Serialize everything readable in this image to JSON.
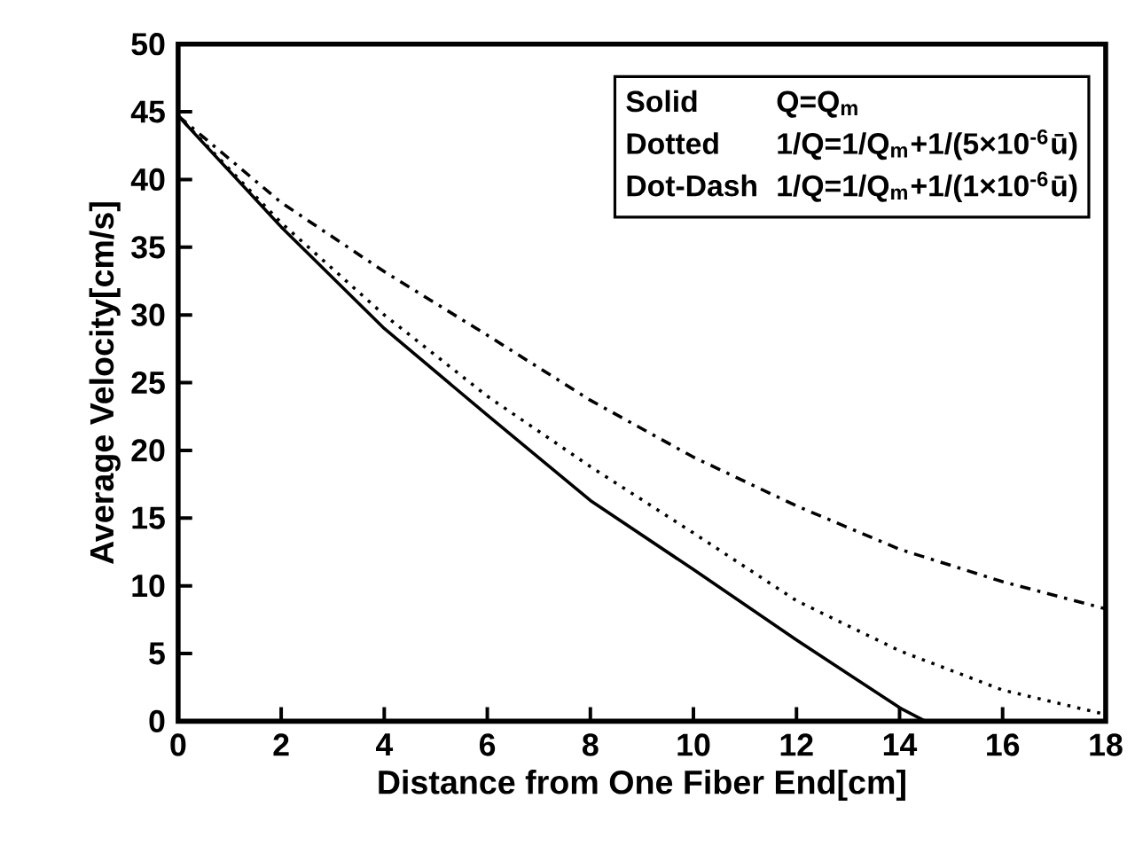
{
  "chart_data": {
    "type": "line",
    "xlabel": "Distance from One Fiber End[cm]",
    "ylabel": "Average Velocity[cm/s]",
    "xlim": [
      0,
      18
    ],
    "ylim": [
      0,
      50
    ],
    "xticks": [
      0,
      2,
      4,
      6,
      8,
      10,
      12,
      14,
      16,
      18
    ],
    "yticks": [
      0,
      5,
      10,
      15,
      20,
      25,
      30,
      35,
      40,
      45,
      50
    ],
    "grid": false,
    "annotations": [
      "Solid",
      "Q=Q$_{m}$",
      "Dotted",
      "1/Q=1/Q$_{m}$+1/(5×10$^{-6}$ū)",
      "Dot-Dash",
      "1/Q=1/Q$_{m}$+1/(1×10$^{-6}$ū)"
    ],
    "series": [
      {
        "color": "#000000",
        "line_style": "solid",
        "x": [
          0,
          2,
          4,
          6,
          8,
          10,
          12,
          14,
          14.5,
          14.8
        ],
        "values": [
          44.7,
          36.5,
          29,
          22.6,
          16.3,
          11.2,
          6.0,
          1.0,
          0,
          0
        ]
      },
      {
        "color": "#000000",
        "line_style": "dotted",
        "x": [
          0,
          2,
          4,
          6,
          8,
          10,
          12,
          14,
          16,
          18
        ],
        "values": [
          44.7,
          36.8,
          30,
          24,
          18.8,
          13.9,
          8.9,
          5.2,
          2.3,
          0.5
        ]
      },
      {
        "color": "#000000",
        "line_style": "dashdot",
        "x": [
          0,
          2,
          4,
          6,
          8,
          10,
          12,
          14,
          16,
          18
        ],
        "values": [
          44.7,
          38.3,
          33.2,
          28.5,
          23.7,
          19.5,
          15.9,
          12.7,
          10.3,
          8.3
        ]
      }
    ]
  }
}
